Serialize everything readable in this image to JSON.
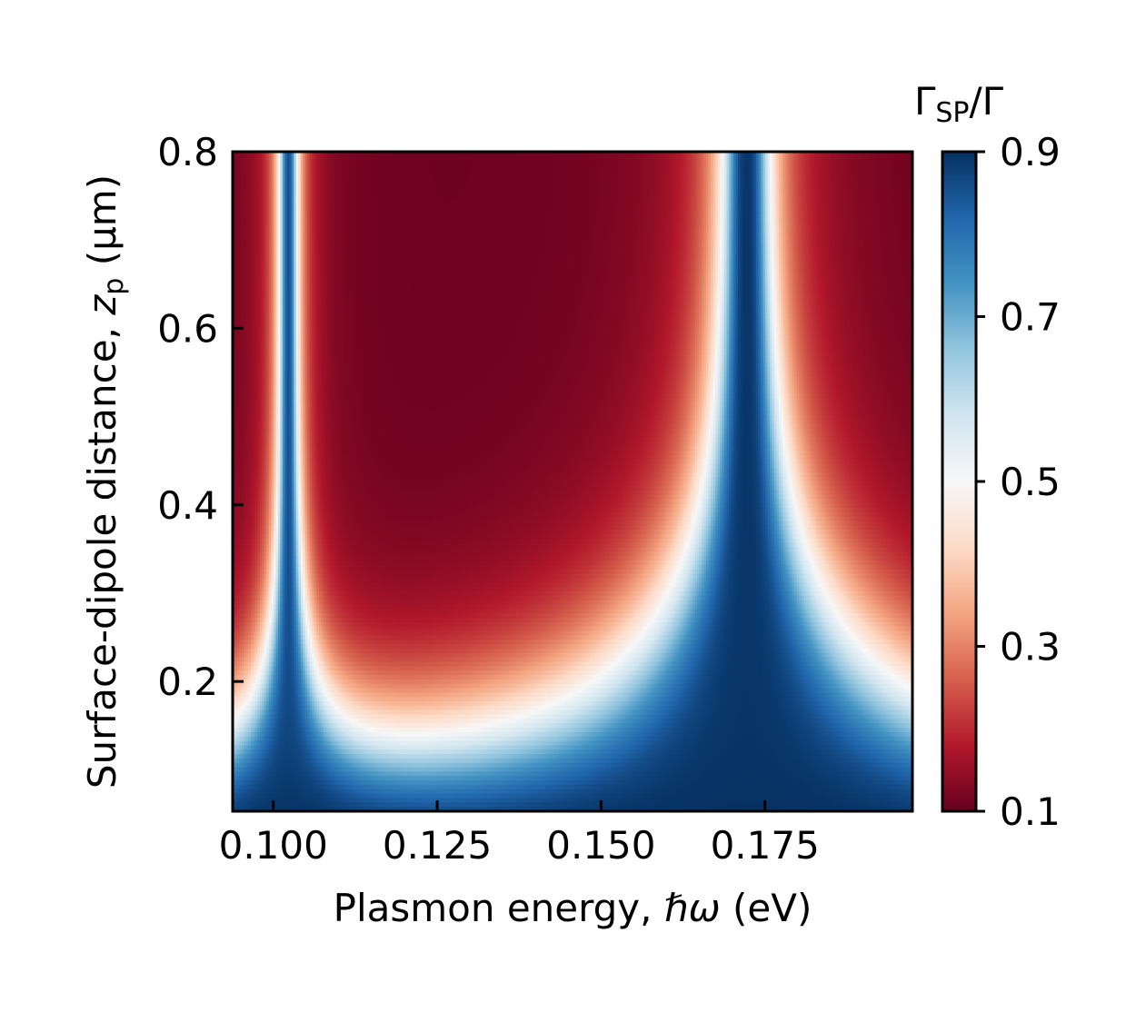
{
  "chart_data": {
    "type": "heatmap",
    "title": "",
    "xlabel": "Plasmon energy, ℏω (eV)",
    "ylabel": "Surface-dipole distance, zp (μm)",
    "xlabel_parts": {
      "pre": "Plasmon energy, ",
      "sym": "ℏω",
      "post": " (eV)"
    },
    "ylabel_parts": {
      "pre": "Surface-dipole distance, ",
      "sym": "z",
      "sub": "p",
      "post": " (μm)"
    },
    "xlim": [
      0.0938,
      0.1975
    ],
    "ylim": [
      0.053,
      0.8
    ],
    "x_ticks": [
      0.1,
      0.125,
      0.15,
      0.175
    ],
    "x_tick_labels": [
      "0.100",
      "0.125",
      "0.150",
      "0.175"
    ],
    "y_ticks": [
      0.2,
      0.4,
      0.6,
      0.8
    ],
    "y_tick_labels": [
      "0.2",
      "0.4",
      "0.6",
      "0.8"
    ],
    "colorbar": {
      "label": "ΓSP/Γ",
      "label_main": "Γ",
      "label_sub": "SP",
      "label_tail": "/Γ",
      "range": [
        0.1,
        0.9
      ],
      "ticks": [
        0.1,
        0.3,
        0.5,
        0.7,
        0.9
      ],
      "tick_labels": [
        "0.1",
        "0.3",
        "0.5",
        "0.7",
        "0.9"
      ],
      "colormap": "RdBu",
      "colors": [
        "#67001f",
        "#b2182b",
        "#d6604d",
        "#f4a582",
        "#fddbc7",
        "#f7f7f7",
        "#d1e5f0",
        "#92c5de",
        "#4393c3",
        "#2166ac",
        "#053061"
      ]
    },
    "resonances_eV": [
      0.1023,
      0.1722
    ],
    "grid": false,
    "legend": "none"
  }
}
